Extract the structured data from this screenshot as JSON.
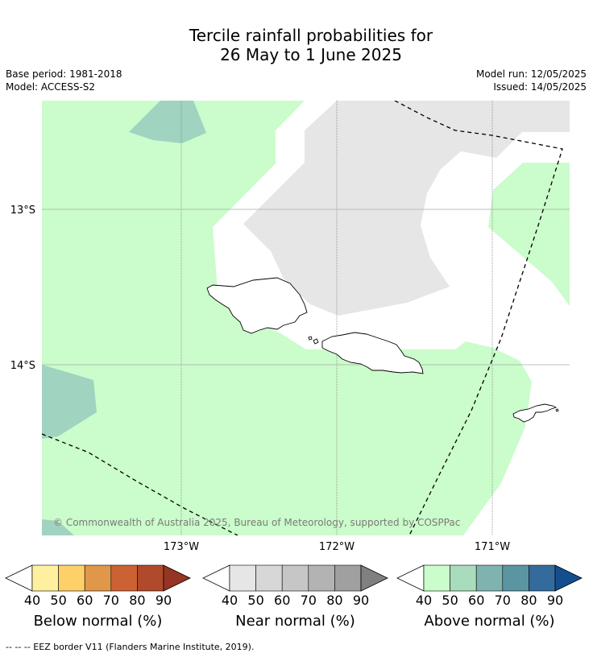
{
  "title_line1": "Tercile rainfall probabilities for",
  "title_line2": "26 May to 1 June 2025",
  "base_period": "Base period: 1981-2018",
  "model": "Model: ACCESS-S2",
  "model_run": "Model run: 12/05/2025",
  "issued": "Issued: 14/05/2025",
  "copyright": "© Commonwealth of Australia 2025, Bureau of Meteorology, supported by COSPPac",
  "lat_labels": [
    "13°S",
    "14°S"
  ],
  "lon_labels": [
    "173°W",
    "172°W",
    "171°W"
  ],
  "colorbars": [
    {
      "title": "Below normal (%)",
      "ticks": [
        "40",
        "50",
        "60",
        "70",
        "80",
        "90"
      ],
      "colors": [
        "#fff0a0",
        "#fdd06a",
        "#e0974a",
        "#cc6233",
        "#b04a2a",
        "#963523"
      ]
    },
    {
      "title": "Near normal (%)",
      "ticks": [
        "40",
        "50",
        "60",
        "70",
        "80",
        "90"
      ],
      "colors": [
        "#e6e6e6",
        "#d7d7d7",
        "#c6c6c6",
        "#b3b3b3",
        "#a0a0a0",
        "#808080"
      ]
    },
    {
      "title": "Above normal (%)",
      "ticks": [
        "40",
        "50",
        "60",
        "70",
        "80",
        "90"
      ],
      "colors": [
        "#cbfccb",
        "#a8dcbc",
        "#7fb3b0",
        "#5b95a2",
        "#346b9c",
        "#134f8f"
      ]
    }
  ],
  "footer": "--  --  -- EEZ border V11 (Flanders Marine Institute, 2019).",
  "colors": {
    "above_40": "#cbfccb",
    "above_50": "#a0d3c0",
    "near_40": "#e6e6e6"
  }
}
